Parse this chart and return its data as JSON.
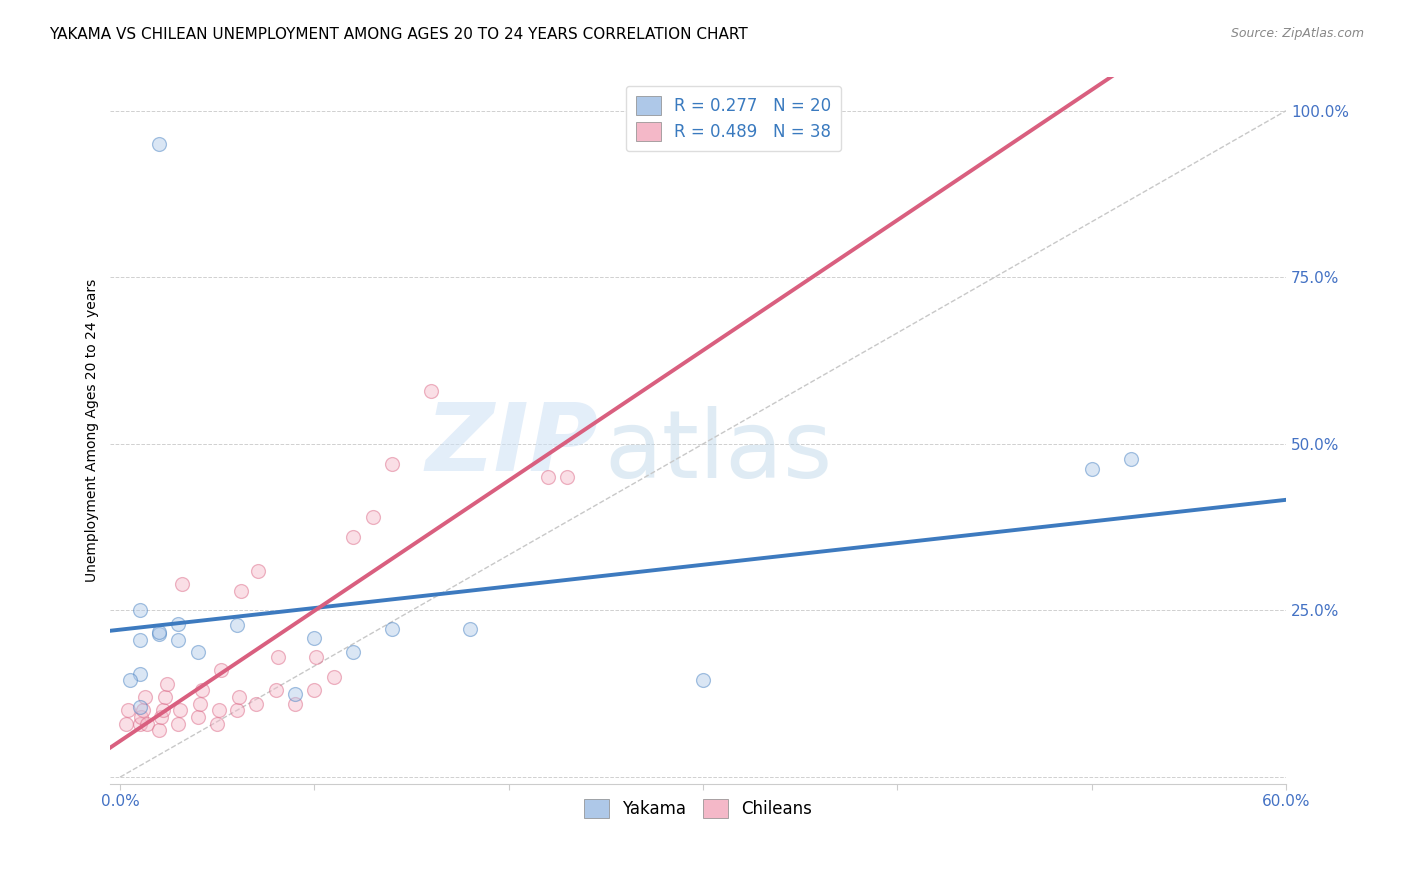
{
  "title": "YAKAMA VS CHILEAN UNEMPLOYMENT AMONG AGES 20 TO 24 YEARS CORRELATION CHART",
  "source": "Source: ZipAtlas.com",
  "tick_color": "#4472c4",
  "ylabel": "Unemployment Among Ages 20 to 24 years",
  "x_tick_labels": [
    "0.0%",
    "",
    "",
    "",
    "",
    "",
    "60.0%"
  ],
  "x_tick_values": [
    0.0,
    0.1,
    0.2,
    0.3,
    0.4,
    0.5,
    0.6
  ],
  "y_tick_labels": [
    "",
    "25.0%",
    "50.0%",
    "75.0%",
    "100.0%"
  ],
  "y_tick_values": [
    0.0,
    0.25,
    0.5,
    0.75,
    1.0
  ],
  "xlim": [
    -0.005,
    0.6
  ],
  "ylim": [
    -0.01,
    1.05
  ],
  "legend_yakama": "R = 0.277   N = 20",
  "legend_chileans": "R = 0.489   N = 38",
  "yakama_color": "#aec8e8",
  "chileans_color": "#f4b8c8",
  "yakama_line_color": "#3d7abf",
  "chileans_line_color": "#d95f7f",
  "diagonal_color": "#c8c8c8",
  "watermark_zip": "ZIP",
  "watermark_atlas": "atlas",
  "yakama_x": [
    0.02,
    0.03,
    0.01,
    0.02,
    0.01,
    0.005,
    0.01,
    0.03,
    0.01,
    0.02,
    0.04,
    0.06,
    0.1,
    0.12,
    0.14,
    0.18,
    0.3,
    0.5,
    0.52,
    0.09
  ],
  "yakama_y": [
    0.95,
    0.205,
    0.155,
    0.215,
    0.105,
    0.145,
    0.205,
    0.23,
    0.25,
    0.218,
    0.188,
    0.228,
    0.208,
    0.188,
    0.222,
    0.222,
    0.145,
    0.462,
    0.478,
    0.125
  ],
  "chileans_x": [
    0.003,
    0.004,
    0.01,
    0.011,
    0.012,
    0.013,
    0.014,
    0.02,
    0.021,
    0.022,
    0.023,
    0.024,
    0.03,
    0.031,
    0.032,
    0.04,
    0.041,
    0.042,
    0.05,
    0.051,
    0.052,
    0.06,
    0.061,
    0.062,
    0.07,
    0.071,
    0.08,
    0.081,
    0.09,
    0.1,
    0.101,
    0.11,
    0.12,
    0.13,
    0.14,
    0.16,
    0.22,
    0.23
  ],
  "chileans_y": [
    0.08,
    0.1,
    0.08,
    0.09,
    0.1,
    0.12,
    0.08,
    0.07,
    0.09,
    0.1,
    0.12,
    0.14,
    0.08,
    0.1,
    0.29,
    0.09,
    0.11,
    0.13,
    0.08,
    0.1,
    0.16,
    0.1,
    0.12,
    0.28,
    0.11,
    0.31,
    0.13,
    0.18,
    0.11,
    0.13,
    0.18,
    0.15,
    0.36,
    0.39,
    0.47,
    0.58,
    0.45,
    0.45
  ],
  "title_fontsize": 11,
  "source_fontsize": 9,
  "axis_label_fontsize": 10,
  "tick_fontsize": 11,
  "legend_fontsize": 12,
  "marker_size": 100,
  "marker_alpha": 0.45,
  "line_width": 2.8
}
